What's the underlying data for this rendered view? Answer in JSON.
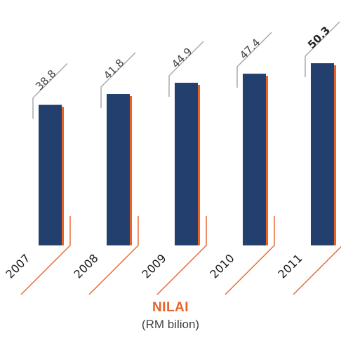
{
  "chart_data": {
    "type": "bar",
    "categories": [
      "2007",
      "2008",
      "2009",
      "2010",
      "2011"
    ],
    "values": [
      38.8,
      41.8,
      44.9,
      47.4,
      50.3
    ],
    "value_labels": [
      "38.8",
      "41.8",
      "44.9",
      "47.4",
      "50.3"
    ],
    "highlight_index": 4,
    "title": "NILAI",
    "subtitle": "(RM bilion)",
    "ylim": [
      0,
      60
    ],
    "grid": false,
    "legend": "none",
    "colors": {
      "bar": "#233f6e",
      "shadow": "#e8622a",
      "leader": "#a6a6a6",
      "title": "#e8622a"
    }
  }
}
